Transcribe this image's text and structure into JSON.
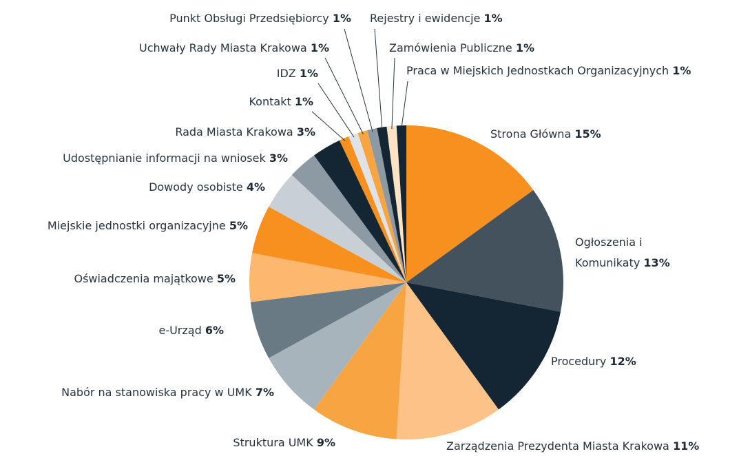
{
  "chart_data": {
    "type": "pie",
    "categories": [
      "Strona Główna",
      "Ogłoszenia i Komunikaty",
      "Procedury",
      "Zarządzenia Prezydenta Miasta Krakowa",
      "Struktura UMK",
      "Nabór na stanowiska pracy w UMK",
      "e-Urząd",
      "Oświadczenia majątkowe",
      "Miejskie jednostki organizacyjne",
      "Dowody osobiste",
      "Udostępnianie informacji na wniosek",
      "Rada Miasta Krakowa",
      "Kontakt",
      "IDZ",
      "Uchwały Rady Miasta Krakowa",
      "Punkt Obsługi Przedsiębiorcy",
      "Rejestry i ewidencje",
      "Zamówienia Publiczne",
      "Praca w Miejskich Jednostkach Organizacyjnych"
    ],
    "values": [
      15,
      13,
      12,
      11,
      9,
      7,
      6,
      5,
      5,
      4,
      3,
      3,
      1,
      1,
      1,
      1,
      1,
      1,
      1
    ],
    "value_labels": [
      "15%",
      "13%",
      "12%",
      "11%",
      "9%",
      "7%",
      "6%",
      "5%",
      "5%",
      "4%",
      "3%",
      "3%",
      "1%",
      "1%",
      "1%",
      "1%",
      "1%",
      "1%",
      "1%"
    ],
    "colors": [
      "#f7901e",
      "#44525e",
      "#142633",
      "#fcc287",
      "#f7a543",
      "#a8b4bc",
      "#6a7a85",
      "#fbb86e",
      "#f7901e",
      "#c8d0d5",
      "#8d9aa3",
      "#142633",
      "#f7901e",
      "#dfe3e6",
      "#f7a543",
      "#8d9aa3",
      "#142633",
      "#fde2c4",
      "#142633"
    ]
  }
}
